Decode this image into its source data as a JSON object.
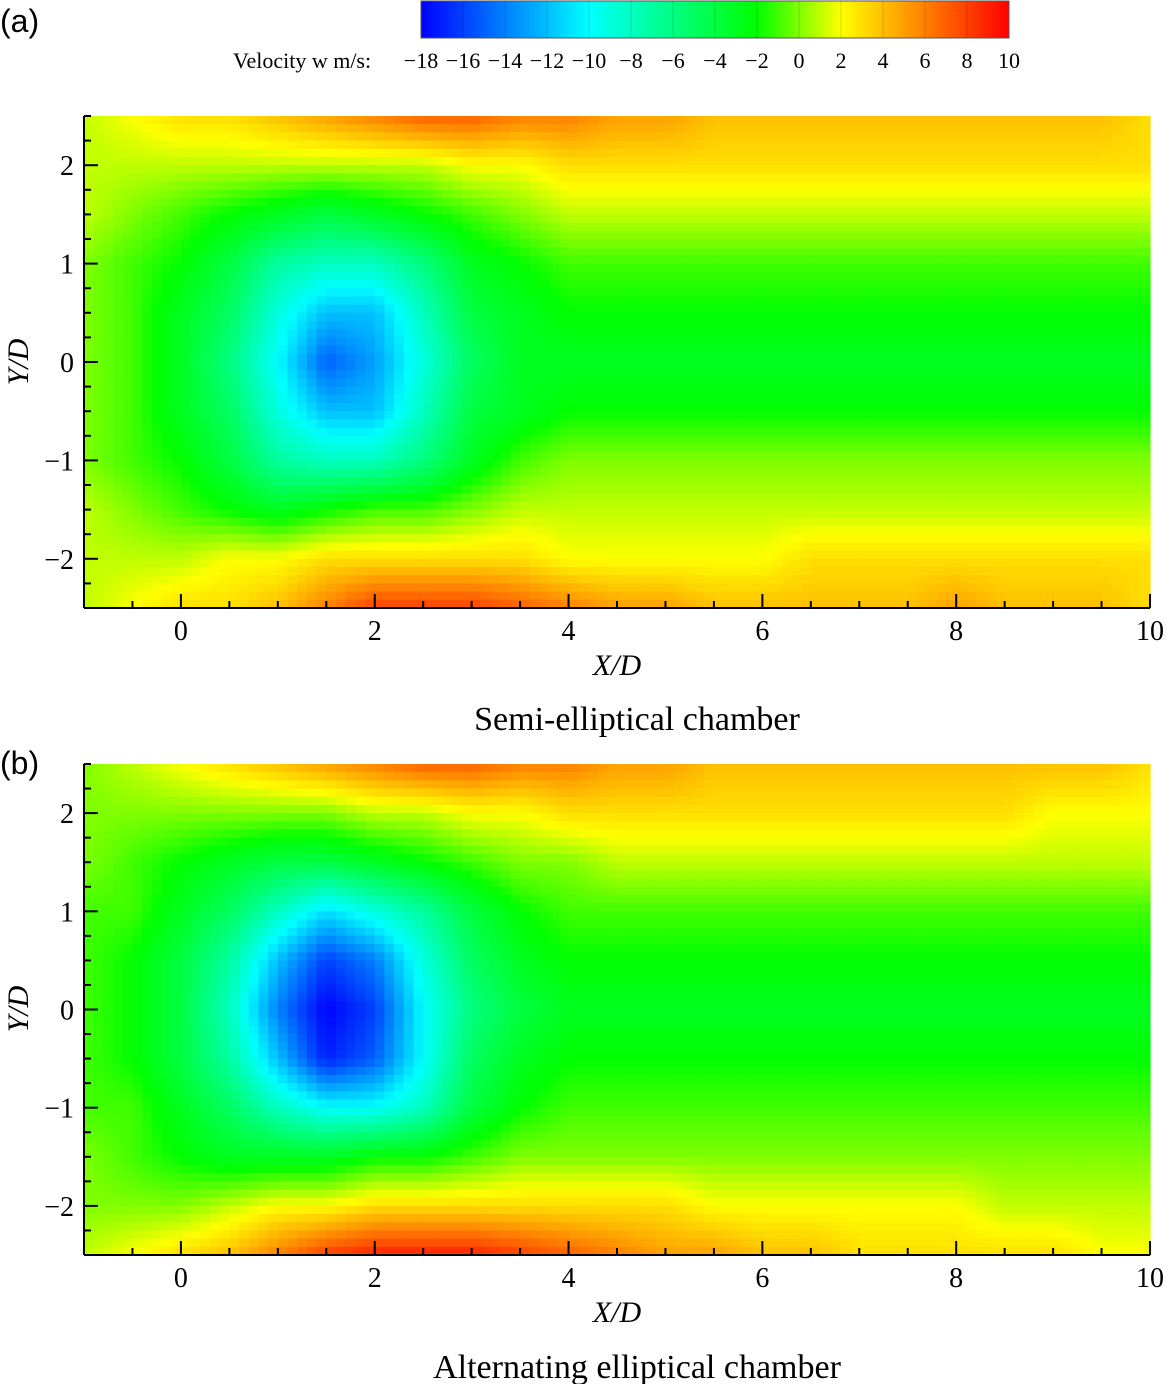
{
  "colorbar": {
    "label": "Velocity w m/s:",
    "min": -18,
    "max": 10,
    "ticks": [
      "−18",
      "−16",
      "−14",
      "−12",
      "−10",
      "−8",
      "−6",
      "−4",
      "−2",
      "0",
      "2",
      "4",
      "6",
      "8",
      "10"
    ],
    "tick_values": [
      -18,
      -16,
      -14,
      -12,
      -10,
      -8,
      -6,
      -4,
      -2,
      0,
      2,
      4,
      6,
      8,
      10
    ],
    "colormap": [
      "#0000ff",
      "#00ffff",
      "#00ff00",
      "#ffff00",
      "#ff0000"
    ],
    "colormap_stops": [
      -18,
      -10,
      -2,
      2,
      10
    ]
  },
  "chart_data": [
    {
      "type": "heatmap",
      "panel_letter": "(a)",
      "caption": "Semi-elliptical chamber",
      "xlabel": "X/D",
      "ylabel": "Y/D",
      "xlim": [
        -1,
        10
      ],
      "ylim": [
        -2.5,
        2.5
      ],
      "x_ticks": [
        "0",
        "2",
        "4",
        "6",
        "8",
        "10"
      ],
      "x_tick_values": [
        0,
        2,
        4,
        6,
        8,
        10
      ],
      "y_ticks": [
        "−2",
        "−1",
        "0",
        "1",
        "2"
      ],
      "y_tick_values": [
        -2,
        -1,
        0,
        1,
        2
      ],
      "x": [
        -1,
        -0.5,
        0,
        0.5,
        1,
        1.5,
        2,
        2.5,
        3,
        3.5,
        4,
        4.5,
        5,
        5.5,
        6,
        6.5,
        7,
        7.5,
        8,
        8.5,
        9,
        9.5,
        10
      ],
      "y": [
        2.5,
        2,
        1.5,
        1,
        0.5,
        0,
        -0.5,
        -1,
        -1.5,
        -2,
        -2.5
      ],
      "z": [
        [
          1,
          2,
          3,
          3,
          4,
          5,
          6,
          7,
          7,
          6,
          6,
          5,
          5,
          4,
          4,
          4,
          4,
          4,
          4,
          4,
          4,
          4,
          3
        ],
        [
          1,
          1,
          1,
          1,
          1,
          1,
          1,
          1,
          2,
          2,
          3,
          3,
          3,
          3,
          3,
          3,
          3,
          3,
          3,
          3,
          3,
          3,
          3
        ],
        [
          1,
          0,
          -1,
          -2,
          -3,
          -4,
          -3,
          -2,
          -1,
          0,
          1,
          1,
          1,
          1,
          1,
          1,
          1,
          1,
          1,
          1,
          1,
          1,
          1
        ],
        [
          0,
          -1,
          -2,
          -4,
          -7,
          -8,
          -8,
          -6,
          -3,
          -2,
          -1,
          -1,
          -1,
          -1,
          -1,
          -1,
          -1,
          -1,
          -1,
          -1,
          -1,
          -1,
          -1
        ],
        [
          0,
          -1,
          -3,
          -5,
          -9,
          -12,
          -12,
          -8,
          -4,
          -3,
          -2,
          -2,
          -2,
          -2,
          -2,
          -2,
          -2,
          -2,
          -2,
          -2,
          -2,
          -2,
          -2
        ],
        [
          0,
          -1,
          -3,
          -6,
          -10,
          -15,
          -13,
          -9,
          -5,
          -3,
          -3,
          -3,
          -3,
          -3,
          -3,
          -3,
          -3,
          -3,
          -3,
          -3,
          -3,
          -3,
          -3
        ],
        [
          0,
          -1,
          -3,
          -5,
          -9,
          -12,
          -12,
          -8,
          -4,
          -3,
          -2,
          -2,
          -2,
          -2,
          -2,
          -2,
          -2,
          -2,
          -2,
          -2,
          -2,
          -2,
          -2
        ],
        [
          0,
          -1,
          -2,
          -4,
          -7,
          -8,
          -8,
          -6,
          -3,
          -1,
          0,
          0,
          0,
          0,
          0,
          0,
          0,
          0,
          0,
          0,
          0,
          0,
          0
        ],
        [
          1,
          0,
          -1,
          -2,
          -3,
          -2,
          -1,
          -1,
          0,
          1,
          1,
          1,
          1,
          1,
          1,
          1,
          1,
          1,
          1,
          1,
          1,
          1,
          1
        ],
        [
          1,
          1,
          1,
          2,
          2,
          3,
          3,
          3,
          3,
          3,
          2,
          2,
          2,
          2,
          2,
          3,
          3,
          3,
          3,
          3,
          3,
          3,
          3
        ],
        [
          1,
          2,
          3,
          3,
          4,
          6,
          8,
          8,
          8,
          7,
          6,
          5,
          5,
          4,
          4,
          4,
          4,
          4,
          5,
          4,
          4,
          4,
          3
        ]
      ]
    },
    {
      "type": "heatmap",
      "panel_letter": "(b)",
      "caption": "Alternating elliptical chamber",
      "xlabel": "X/D",
      "ylabel": "Y/D",
      "xlim": [
        -1,
        10
      ],
      "ylim": [
        -2.5,
        2.5
      ],
      "x_ticks": [
        "0",
        "2",
        "4",
        "6",
        "8",
        "10"
      ],
      "x_tick_values": [
        0,
        2,
        4,
        6,
        8,
        10
      ],
      "y_ticks": [
        "−2",
        "−1",
        "0",
        "1",
        "2"
      ],
      "y_tick_values": [
        -2,
        -1,
        0,
        1,
        2
      ],
      "x": [
        -1,
        -0.5,
        0,
        0.5,
        1,
        1.5,
        2,
        2.5,
        3,
        3.5,
        4,
        4.5,
        5,
        5.5,
        6,
        6.5,
        7,
        7.5,
        8,
        8.5,
        9,
        9.5,
        10
      ],
      "y": [
        2.5,
        2,
        1.5,
        1,
        0.5,
        0,
        -0.5,
        -1,
        -1.5,
        -2,
        -2.5
      ],
      "z": [
        [
          0,
          1,
          2,
          3,
          4,
          5,
          6,
          7,
          7,
          6,
          6,
          5,
          5,
          4,
          4,
          4,
          4,
          4,
          4,
          4,
          4,
          4,
          3
        ],
        [
          0,
          0,
          0,
          0,
          0,
          0,
          1,
          1,
          2,
          2,
          3,
          3,
          3,
          3,
          3,
          3,
          3,
          3,
          3,
          3,
          2,
          2,
          2
        ],
        [
          0,
          -1,
          -2,
          -3,
          -4,
          -4,
          -3,
          -2,
          -1,
          0,
          0,
          1,
          1,
          1,
          1,
          1,
          1,
          1,
          1,
          1,
          1,
          1,
          1
        ],
        [
          -1,
          -1,
          -3,
          -5,
          -8,
          -11,
          -9,
          -7,
          -4,
          -2,
          -1,
          -1,
          -1,
          -1,
          -1,
          -1,
          -1,
          -1,
          -1,
          -1,
          -1,
          -1,
          -1
        ],
        [
          -1,
          -2,
          -4,
          -7,
          -12,
          -16,
          -14,
          -9,
          -5,
          -3,
          -2,
          -2,
          -2,
          -2,
          -2,
          -2,
          -2,
          -2,
          -2,
          -2,
          -2,
          -2,
          -2
        ],
        [
          -1,
          -2,
          -4,
          -8,
          -14,
          -18,
          -16,
          -10,
          -6,
          -4,
          -3,
          -3,
          -3,
          -3,
          -3,
          -3,
          -3,
          -3,
          -3,
          -3,
          -3,
          -3,
          -3
        ],
        [
          -1,
          -2,
          -4,
          -7,
          -12,
          -17,
          -15,
          -10,
          -5,
          -3,
          -2,
          -2,
          -2,
          -2,
          -2,
          -2,
          -2,
          -2,
          -2,
          -2,
          -2,
          -2,
          -2
        ],
        [
          -1,
          -1,
          -3,
          -5,
          -8,
          -10,
          -10,
          -8,
          -4,
          -2,
          -1,
          -1,
          -1,
          -1,
          -1,
          -1,
          -1,
          -1,
          -1,
          -1,
          -1,
          -1,
          -1
        ],
        [
          0,
          -1,
          -2,
          -3,
          -3,
          -3,
          -2,
          -2,
          -1,
          0,
          0,
          0,
          0,
          0,
          0,
          0,
          0,
          0,
          0,
          0,
          0,
          0,
          0
        ],
        [
          0,
          0,
          0,
          1,
          2,
          2,
          3,
          3,
          3,
          3,
          3,
          3,
          3,
          2,
          2,
          2,
          2,
          2,
          2,
          1,
          1,
          1,
          1
        ],
        [
          1,
          2,
          3,
          4,
          6,
          8,
          9,
          9,
          9,
          8,
          7,
          6,
          5,
          5,
          4,
          4,
          3,
          3,
          3,
          3,
          3,
          2,
          2
        ]
      ]
    }
  ]
}
